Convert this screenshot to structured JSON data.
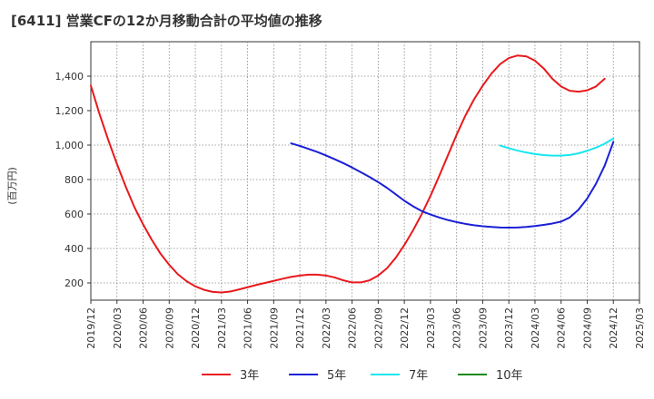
{
  "chart_data": {
    "type": "line",
    "title": "[6411]  営業CFの12か月移動合計の平均値の推移",
    "ylabel": "(百万円)",
    "xlabel": "",
    "ylim": [
      100,
      1600
    ],
    "yticks": [
      200,
      400,
      600,
      800,
      1000,
      1200,
      1400
    ],
    "ytick_labels": [
      "200",
      "400",
      "600",
      "800",
      "1,000",
      "1,200",
      "1,400"
    ],
    "x_ticks": [
      "2019/12",
      "2020/03",
      "2020/06",
      "2020/09",
      "2020/12",
      "2021/03",
      "2021/06",
      "2021/09",
      "2021/12",
      "2022/03",
      "2022/06",
      "2022/09",
      "2022/12",
      "2023/03",
      "2023/06",
      "2023/09",
      "2023/12",
      "2024/03",
      "2024/06",
      "2024/09",
      "2024/12",
      "2025/03"
    ],
    "grid": true,
    "legend_position": "bottom",
    "series": [
      {
        "name": "3年",
        "color": "#e8191d",
        "points": [
          [
            "2019/12",
            1345
          ],
          [
            "2020/01",
            1180
          ],
          [
            "2020/02",
            1030
          ],
          [
            "2020/03",
            890
          ],
          [
            "2020/04",
            760
          ],
          [
            "2020/05",
            640
          ],
          [
            "2020/06",
            540
          ],
          [
            "2020/07",
            450
          ],
          [
            "2020/08",
            370
          ],
          [
            "2020/09",
            305
          ],
          [
            "2020/10",
            250
          ],
          [
            "2020/11",
            210
          ],
          [
            "2020/12",
            180
          ],
          [
            "2021/01",
            160
          ],
          [
            "2021/02",
            148
          ],
          [
            "2021/03",
            145
          ],
          [
            "2021/04",
            150
          ],
          [
            "2021/05",
            162
          ],
          [
            "2021/06",
            175
          ],
          [
            "2021/07",
            188
          ],
          [
            "2021/08",
            200
          ],
          [
            "2021/09",
            212
          ],
          [
            "2021/10",
            224
          ],
          [
            "2021/11",
            235
          ],
          [
            "2021/12",
            243
          ],
          [
            "2022/01",
            248
          ],
          [
            "2022/02",
            248
          ],
          [
            "2022/03",
            243
          ],
          [
            "2022/04",
            232
          ],
          [
            "2022/05",
            215
          ],
          [
            "2022/06",
            203
          ],
          [
            "2022/07",
            203
          ],
          [
            "2022/08",
            215
          ],
          [
            "2022/09",
            243
          ],
          [
            "2022/10",
            285
          ],
          [
            "2022/11",
            345
          ],
          [
            "2022/12",
            420
          ],
          [
            "2023/01",
            505
          ],
          [
            "2023/02",
            600
          ],
          [
            "2023/03",
            705
          ],
          [
            "2023/04",
            820
          ],
          [
            "2023/05",
            940
          ],
          [
            "2023/06",
            1060
          ],
          [
            "2023/07",
            1170
          ],
          [
            "2023/08",
            1265
          ],
          [
            "2023/09",
            1345
          ],
          [
            "2023/10",
            1415
          ],
          [
            "2023/11",
            1470
          ],
          [
            "2023/12",
            1505
          ],
          [
            "2024/01",
            1520
          ],
          [
            "2024/02",
            1515
          ],
          [
            "2024/03",
            1490
          ],
          [
            "2024/04",
            1445
          ],
          [
            "2024/05",
            1385
          ],
          [
            "2024/06",
            1340
          ],
          [
            "2024/07",
            1315
          ],
          [
            "2024/08",
            1310
          ],
          [
            "2024/09",
            1318
          ],
          [
            "2024/10",
            1340
          ],
          [
            "2024/11",
            1385
          ]
        ]
      },
      {
        "name": "5年",
        "color": "#1a1fd6",
        "points": [
          [
            "2021/11",
            1010
          ],
          [
            "2021/12",
            995
          ],
          [
            "2022/01",
            978
          ],
          [
            "2022/02",
            960
          ],
          [
            "2022/03",
            940
          ],
          [
            "2022/04",
            918
          ],
          [
            "2022/05",
            895
          ],
          [
            "2022/06",
            870
          ],
          [
            "2022/07",
            843
          ],
          [
            "2022/08",
            815
          ],
          [
            "2022/09",
            785
          ],
          [
            "2022/10",
            752
          ],
          [
            "2022/11",
            715
          ],
          [
            "2022/12",
            677
          ],
          [
            "2023/01",
            645
          ],
          [
            "2023/02",
            617
          ],
          [
            "2023/03",
            597
          ],
          [
            "2023/04",
            580
          ],
          [
            "2023/05",
            565
          ],
          [
            "2023/06",
            553
          ],
          [
            "2023/07",
            543
          ],
          [
            "2023/08",
            535
          ],
          [
            "2023/09",
            529
          ],
          [
            "2023/10",
            525
          ],
          [
            "2023/11",
            522
          ],
          [
            "2023/12",
            521
          ],
          [
            "2024/01",
            522
          ],
          [
            "2024/02",
            525
          ],
          [
            "2024/03",
            530
          ],
          [
            "2024/04",
            537
          ],
          [
            "2024/05",
            545
          ],
          [
            "2024/06",
            556
          ],
          [
            "2024/07",
            580
          ],
          [
            "2024/08",
            625
          ],
          [
            "2024/09",
            690
          ],
          [
            "2024/10",
            775
          ],
          [
            "2024/11",
            880
          ],
          [
            "2024/12",
            1018
          ]
        ]
      },
      {
        "name": "7年",
        "color": "#19e6ee",
        "points": [
          [
            "2023/11",
            997
          ],
          [
            "2023/12",
            982
          ],
          [
            "2024/01",
            968
          ],
          [
            "2024/02",
            957
          ],
          [
            "2024/03",
            948
          ],
          [
            "2024/04",
            942
          ],
          [
            "2024/05",
            939
          ],
          [
            "2024/06",
            939
          ],
          [
            "2024/07",
            943
          ],
          [
            "2024/08",
            952
          ],
          [
            "2024/09",
            967
          ],
          [
            "2024/10",
            985
          ],
          [
            "2024/11",
            1008
          ],
          [
            "2024/12",
            1038
          ]
        ]
      },
      {
        "name": "10年",
        "color": "#1a8a1a",
        "points": []
      }
    ]
  }
}
